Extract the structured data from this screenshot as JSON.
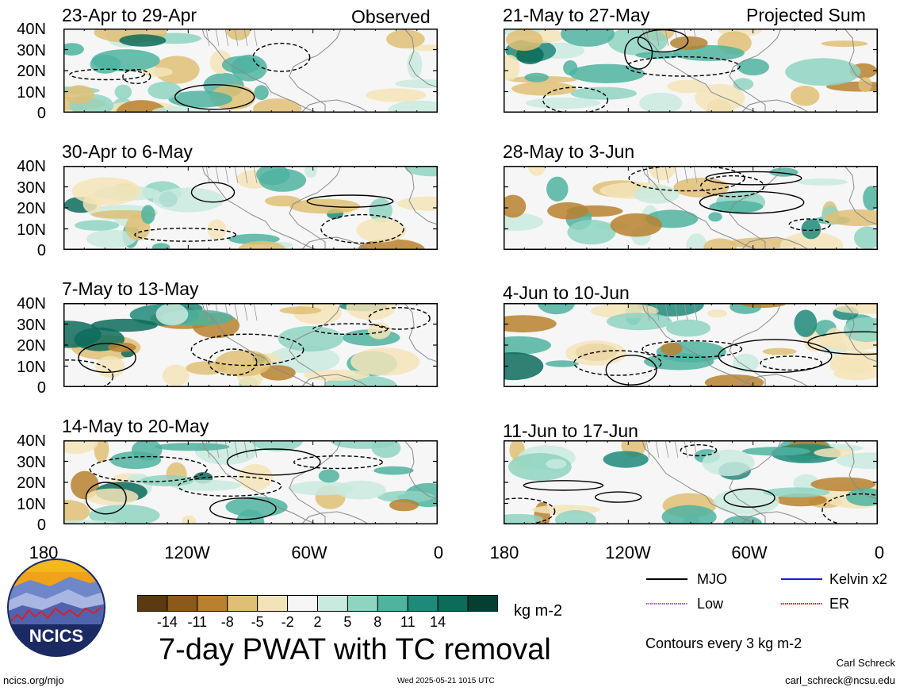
{
  "panels": [
    {
      "id": "p1",
      "title": "23-Apr to 29-Apr",
      "label": "Observed"
    },
    {
      "id": "p2",
      "title": "30-Apr to 6-May",
      "label": ""
    },
    {
      "id": "p3",
      "title": "7-May to 13-May",
      "label": ""
    },
    {
      "id": "p4",
      "title": "14-May to 20-May",
      "label": ""
    },
    {
      "id": "p5",
      "title": "21-May to 27-May",
      "label": "Projected Sum"
    },
    {
      "id": "p6",
      "title": "28-May to 3-Jun",
      "label": ""
    },
    {
      "id": "p7",
      "title": "4-Jun to 10-Jun",
      "label": ""
    },
    {
      "id": "p8",
      "title": "11-Jun to 17-Jun",
      "label": ""
    }
  ],
  "y_ticks": [
    "40N",
    "30N",
    "20N",
    "10N",
    "0"
  ],
  "x_ticks": [
    "180",
    "120W",
    "60W",
    "0"
  ],
  "colorbar": {
    "ticks": [
      "-14",
      "-11",
      "-8",
      "-5",
      "-2",
      "2",
      "5",
      "8",
      "11",
      "14"
    ],
    "unit": "kg m-2",
    "colors": [
      "#5b3a12",
      "#8b5a1b",
      "#b9812f",
      "#dfbf76",
      "#f3e4b8",
      "#f6f6f6",
      "#c9eadf",
      "#8fd3c1",
      "#4fb3a0",
      "#1f8a7a",
      "#0d6b5c",
      "#053f33"
    ]
  },
  "legend": {
    "items": [
      {
        "name": "MJO",
        "color": "#000000",
        "style": "solid"
      },
      {
        "name": "Kelvin x2",
        "color": "#1a1ae6",
        "style": "solid"
      },
      {
        "name": "Low",
        "color": "#9a4fd1",
        "style": "dotted"
      },
      {
        "name": "ER",
        "color": "#e01b1b",
        "style": "dotted"
      }
    ],
    "contours_note": "Contours every 3 kg m-2"
  },
  "main_title": "7-day PWAT with TC removal",
  "logo_text": "NCICS",
  "footer": {
    "url": "ncics.org/mjo",
    "timestamp": "Wed 2025-05-21 1015 UTC",
    "author": "Carl Schreck",
    "email": "carl_schreck@ncsu.edu"
  }
}
